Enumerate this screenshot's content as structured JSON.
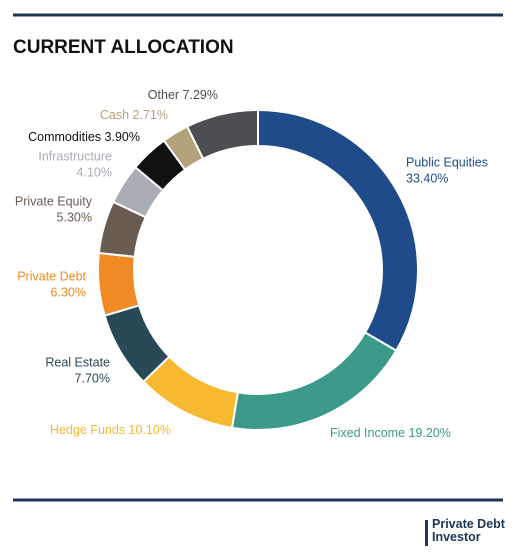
{
  "chart_data": {
    "type": "donut",
    "title": "CURRENT ALLOCATION",
    "categories": [
      "Public Equities",
      "Fixed Income",
      "Hedge Funds",
      "Real Estate",
      "Private Debt",
      "Private Equity",
      "Infrastructure",
      "Commodities",
      "Cash",
      "Other"
    ],
    "values": [
      33.4,
      19.2,
      10.1,
      7.7,
      6.3,
      5.3,
      4.1,
      3.9,
      2.71,
      7.29
    ],
    "value_labels": [
      "33.40%",
      "19.20%",
      "10.10%",
      "7.70%",
      "6.30%",
      "5.30%",
      "4.10%",
      "3.90%",
      "2.71%",
      "7.29%"
    ],
    "colors": [
      "#1f4b8a",
      "#3b9a89",
      "#f6b930",
      "#2a4956",
      "#f08a24",
      "#6a5c51",
      "#a8aeb4",
      "#111111",
      "#b4a27a",
      "#4c4e51"
    ],
    "source": "Private Debt Investor"
  }
}
